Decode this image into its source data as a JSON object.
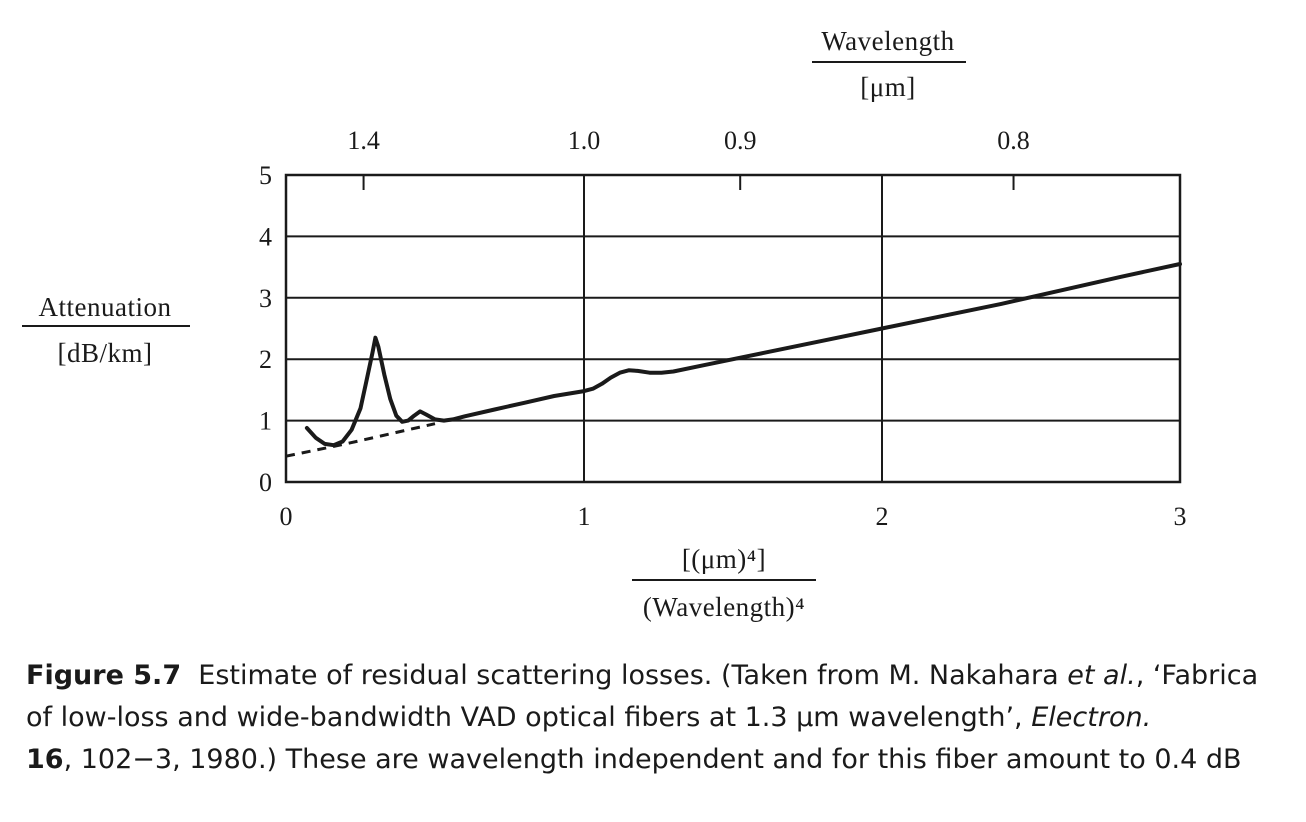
{
  "chart_data": {
    "type": "line",
    "xlabel_numerator": "[(μm)⁴]",
    "xlabel_denominator": "(Wavelength)⁴",
    "ylabel_numerator": "Attenuation",
    "ylabel_denominator": "[dB/km]",
    "top_axis_label_numerator": "Wavelength",
    "top_axis_label_denominator": "[μm]",
    "xlim": [
      0,
      3
    ],
    "ylim": [
      0,
      5
    ],
    "x_ticks": [
      {
        "value": 0,
        "label": "0"
      },
      {
        "value": 1,
        "label": "1"
      },
      {
        "value": 2,
        "label": "2"
      },
      {
        "value": 3,
        "label": "3"
      }
    ],
    "y_ticks": [
      {
        "value": 0,
        "label": "0"
      },
      {
        "value": 1,
        "label": "1"
      },
      {
        "value": 2,
        "label": "2"
      },
      {
        "value": 3,
        "label": "3"
      },
      {
        "value": 4,
        "label": "4"
      },
      {
        "value": 5,
        "label": "5"
      }
    ],
    "top_ticks": [
      {
        "wavelength": 1.4,
        "label": "1.4"
      },
      {
        "wavelength": 1.0,
        "label": "1.0"
      },
      {
        "wavelength": 0.9,
        "label": "0.9"
      },
      {
        "wavelength": 0.8,
        "label": "0.8"
      }
    ],
    "grid": true,
    "series": [
      {
        "style": "solid",
        "x": [
          0.07,
          0.1,
          0.13,
          0.16,
          0.19,
          0.22,
          0.25,
          0.27,
          0.29,
          0.3,
          0.31,
          0.33,
          0.35,
          0.37,
          0.39,
          0.41,
          0.43,
          0.45,
          0.47,
          0.5,
          0.53,
          0.56,
          0.6,
          0.7,
          0.8,
          0.9,
          1.0,
          1.03,
          1.06,
          1.09,
          1.12,
          1.15,
          1.18,
          1.22,
          1.26,
          1.3,
          1.4,
          1.5,
          1.6,
          1.8,
          2.0,
          2.2,
          2.4,
          2.6,
          2.8,
          3.0
        ],
        "y": [
          0.88,
          0.72,
          0.62,
          0.6,
          0.66,
          0.85,
          1.2,
          1.65,
          2.1,
          2.35,
          2.2,
          1.75,
          1.35,
          1.08,
          0.98,
          1.0,
          1.08,
          1.15,
          1.1,
          1.02,
          1.0,
          1.02,
          1.07,
          1.18,
          1.29,
          1.4,
          1.48,
          1.52,
          1.6,
          1.7,
          1.78,
          1.82,
          1.81,
          1.78,
          1.78,
          1.8,
          1.9,
          2.0,
          2.1,
          2.3,
          2.5,
          2.7,
          2.9,
          3.12,
          3.34,
          3.55
        ]
      },
      {
        "style": "dashed",
        "x": [
          0.0,
          0.1,
          0.2,
          0.3,
          0.4,
          0.5
        ],
        "y": [
          0.42,
          0.52,
          0.62,
          0.73,
          0.84,
          0.95
        ]
      }
    ]
  },
  "caption": {
    "figure_label": "Figure 5.7",
    "line1_text": "Estimate of residual scattering losses. (Taken from M. Nakahara ",
    "line1_etal": "et al.",
    "line1_quote": ", ‘Fabrica",
    "line2_text": "of low-loss and wide-bandwidth VAD optical fibers at 1.3 μm wavelength’, ",
    "line2_journal": "Electron. ",
    "line3_volume": "16",
    "line3_text": ", 102−3, 1980.) These are wavelength independent and for this fiber amount to 0.4 dB"
  }
}
